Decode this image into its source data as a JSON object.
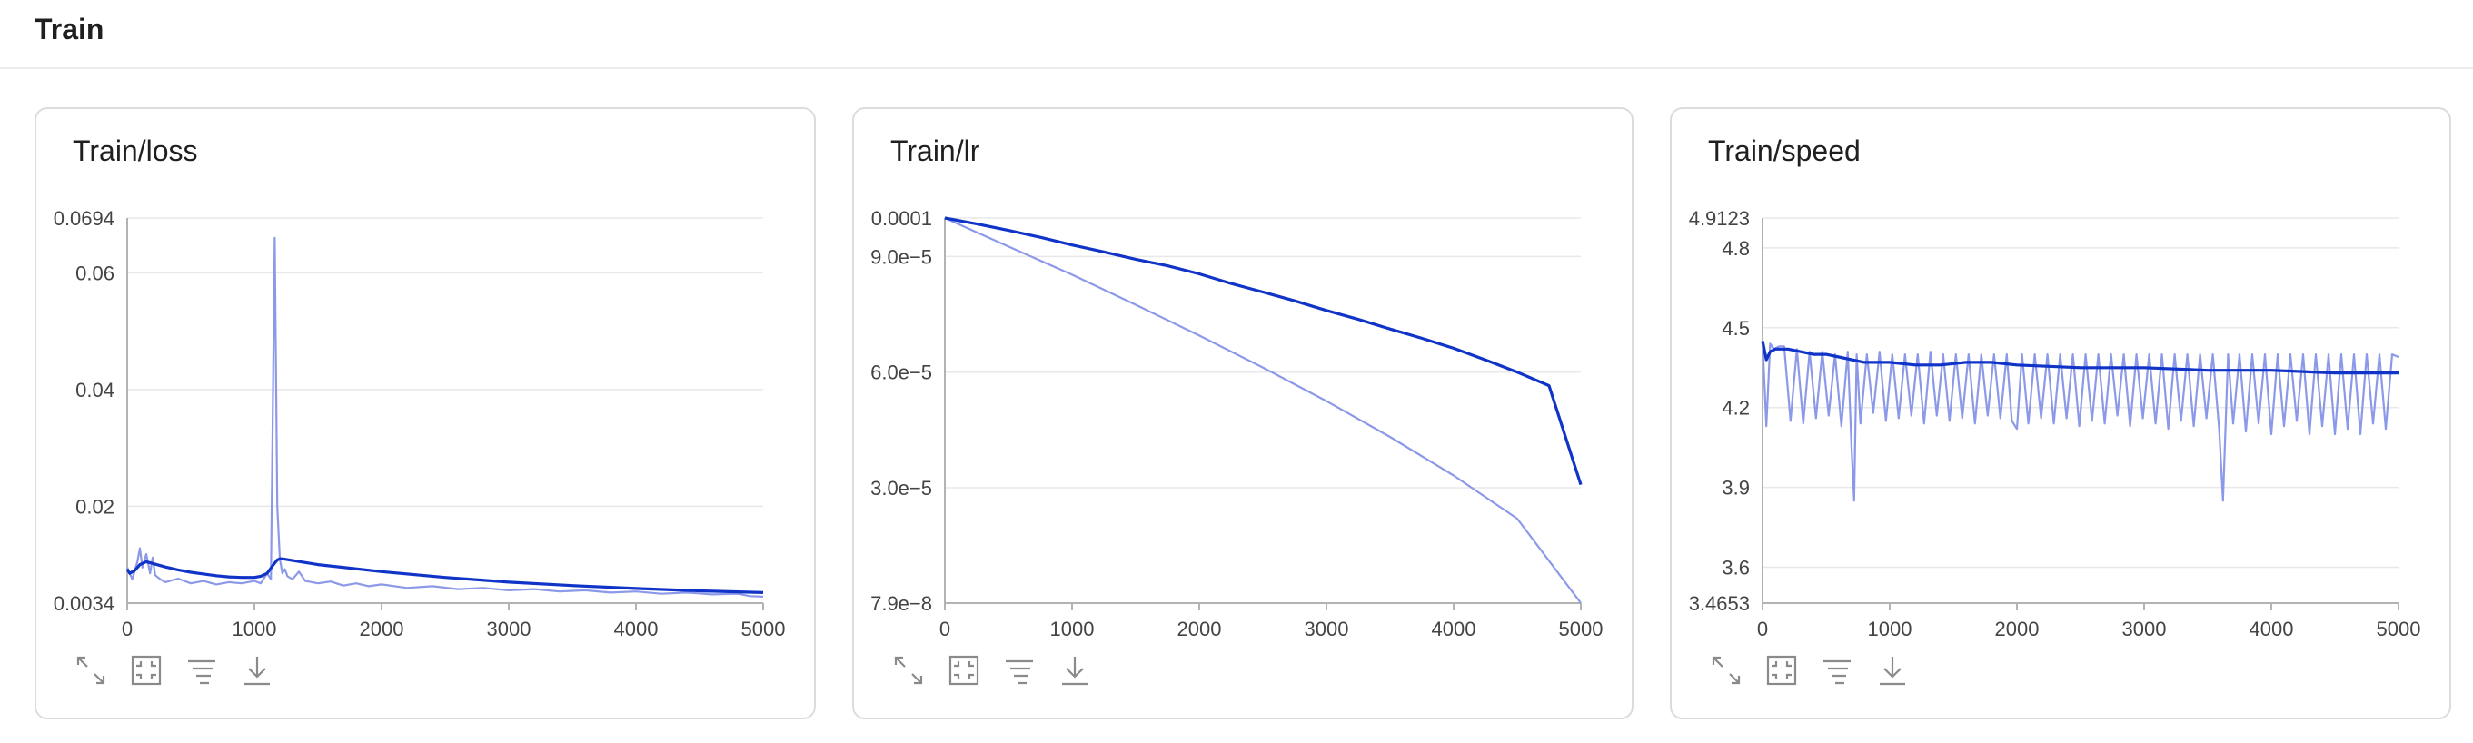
{
  "page": {
    "section_title": "Train"
  },
  "toolbar_icons": [
    "expand-icon",
    "fit-icon",
    "filter-icon",
    "download-icon"
  ],
  "colors": {
    "raw": "#8c99e8",
    "smoothed": "#1033c8",
    "grid": "#e8e8e8",
    "axis": "#b3b3b3",
    "tick": "#444444"
  },
  "chart_data": [
    {
      "type": "line",
      "title": "Train/loss",
      "xlim": [
        0,
        5000
      ],
      "ylim": [
        0.0034,
        0.0694
      ],
      "xticks": [
        0,
        1000,
        2000,
        3000,
        4000,
        5000
      ],
      "xtick_labels": [
        "0",
        "1000",
        "2000",
        "3000",
        "4000",
        "5000"
      ],
      "yticks": [
        0.0034,
        0.02,
        0.04,
        0.06,
        0.0694
      ],
      "ytick_labels": [
        "0.0034",
        "0.02",
        "0.04",
        "0.06",
        "0.0694"
      ],
      "series": [
        {
          "role": "raw",
          "x": [
            0,
            40,
            80,
            100,
            120,
            150,
            180,
            200,
            220,
            260,
            300,
            400,
            500,
            600,
            700,
            800,
            900,
            1000,
            1050,
            1100,
            1130,
            1160,
            1180,
            1200,
            1220,
            1240,
            1260,
            1300,
            1350,
            1400,
            1500,
            1600,
            1700,
            1800,
            1900,
            2000,
            2200,
            2400,
            2600,
            2800,
            3000,
            3200,
            3400,
            3600,
            3800,
            4000,
            4200,
            4400,
            4600,
            4800,
            4900,
            5000
          ],
          "y": [
            0.0095,
            0.0075,
            0.0105,
            0.0128,
            0.0095,
            0.0118,
            0.0085,
            0.0112,
            0.0082,
            0.0075,
            0.007,
            0.0076,
            0.0068,
            0.0072,
            0.0066,
            0.007,
            0.0068,
            0.0072,
            0.0068,
            0.0085,
            0.0075,
            0.066,
            0.02,
            0.011,
            0.0085,
            0.0092,
            0.008,
            0.0075,
            0.0088,
            0.0072,
            0.0068,
            0.0071,
            0.0064,
            0.0068,
            0.0063,
            0.0066,
            0.006,
            0.0063,
            0.0058,
            0.006,
            0.0056,
            0.0058,
            0.0054,
            0.0056,
            0.0052,
            0.0054,
            0.005,
            0.0052,
            0.0049,
            0.005,
            0.0046,
            0.0045
          ]
        },
        {
          "role": "smoothed",
          "x": [
            0,
            20,
            60,
            100,
            150,
            200,
            300,
            400,
            500,
            600,
            700,
            800,
            900,
            1000,
            1050,
            1100,
            1150,
            1180,
            1200,
            1220,
            1300,
            1500,
            2000,
            2500,
            3000,
            3500,
            4000,
            4500,
            5000
          ],
          "y": [
            0.0092,
            0.0085,
            0.009,
            0.01,
            0.0105,
            0.0102,
            0.0096,
            0.0091,
            0.0087,
            0.0084,
            0.0081,
            0.0079,
            0.0078,
            0.0078,
            0.008,
            0.0085,
            0.01,
            0.0108,
            0.011,
            0.011,
            0.0107,
            0.01,
            0.0088,
            0.0078,
            0.007,
            0.0064,
            0.0059,
            0.0055,
            0.0052
          ]
        }
      ]
    },
    {
      "type": "line",
      "title": "Train/lr",
      "xlim": [
        0,
        5000
      ],
      "ylim": [
        7.9e-08,
        0.0001
      ],
      "xticks": [
        0,
        1000,
        2000,
        3000,
        4000,
        5000
      ],
      "xtick_labels": [
        "0",
        "1000",
        "2000",
        "3000",
        "4000",
        "5000"
      ],
      "yticks": [
        7.9e-08,
        3e-05,
        6e-05,
        9e-05,
        0.0001
      ],
      "ytick_labels": [
        "7.9e−8",
        "3.0e−5",
        "6.0e−5",
        "9.0e−5",
        "0.0001"
      ],
      "series": [
        {
          "role": "raw",
          "x": [
            0,
            500,
            1000,
            1500,
            2000,
            2500,
            3000,
            3500,
            4000,
            4500,
            5000
          ],
          "y": [
            0.0001,
            9.26e-05,
            8.53e-05,
            7.75e-05,
            6.95e-05,
            6.12e-05,
            5.25e-05,
            4.32e-05,
            3.32e-05,
            2.2e-05,
            1e-07
          ]
        },
        {
          "role": "smoothed",
          "x": [
            0,
            250,
            500,
            750,
            1000,
            1250,
            1500,
            1750,
            2000,
            2250,
            2500,
            2750,
            3000,
            3250,
            3500,
            3750,
            4000,
            4250,
            4500,
            4750,
            5000
          ],
          "y": [
            0.0001,
            9.85e-05,
            9.68e-05,
            9.5e-05,
            9.3e-05,
            9.12e-05,
            8.93e-05,
            8.76e-05,
            8.55e-05,
            8.3e-05,
            8.08e-05,
            7.85e-05,
            7.6e-05,
            7.37e-05,
            7.12e-05,
            6.88e-05,
            6.62e-05,
            6.32e-05,
            6e-05,
            5.65e-05,
            3.08e-05
          ]
        }
      ]
    },
    {
      "type": "line",
      "title": "Train/speed",
      "xlim": [
        0,
        5000
      ],
      "ylim": [
        3.4653,
        4.9123
      ],
      "xticks": [
        0,
        1000,
        2000,
        3000,
        4000,
        5000
      ],
      "xtick_labels": [
        "0",
        "1000",
        "2000",
        "3000",
        "4000",
        "5000"
      ],
      "yticks": [
        3.4653,
        3.6,
        3.9,
        4.2,
        4.5,
        4.8,
        4.9123
      ],
      "ytick_labels": [
        "3.4653",
        "3.6",
        "3.9",
        "4.2",
        "4.5",
        "4.8",
        "4.9123"
      ],
      "series": [
        {
          "role": "raw",
          "x": [
            0,
            30,
            60,
            90,
            130,
            170,
            220,
            270,
            320,
            370,
            420,
            470,
            520,
            570,
            620,
            670,
            700,
            720,
            740,
            770,
            820,
            870,
            920,
            970,
            1020,
            1070,
            1120,
            1170,
            1220,
            1270,
            1320,
            1370,
            1420,
            1470,
            1520,
            1570,
            1620,
            1670,
            1720,
            1770,
            1820,
            1870,
            1920,
            1960,
            2000,
            2040,
            2090,
            2140,
            2190,
            2240,
            2290,
            2340,
            2390,
            2440,
            2490,
            2540,
            2590,
            2640,
            2690,
            2740,
            2790,
            2840,
            2890,
            2940,
            2990,
            3040,
            3090,
            3140,
            3190,
            3240,
            3290,
            3340,
            3390,
            3440,
            3490,
            3540,
            3590,
            3620,
            3660,
            3700,
            3750,
            3800,
            3850,
            3900,
            3950,
            4000,
            4050,
            4100,
            4150,
            4200,
            4250,
            4300,
            4350,
            4400,
            4450,
            4500,
            4550,
            4600,
            4650,
            4700,
            4750,
            4800,
            4850,
            4900,
            4950,
            5000
          ],
          "y": [
            4.45,
            4.13,
            4.44,
            4.42,
            4.43,
            4.43,
            4.15,
            4.42,
            4.14,
            4.41,
            4.16,
            4.41,
            4.17,
            4.4,
            4.13,
            4.41,
            4.05,
            3.85,
            4.4,
            4.14,
            4.4,
            4.18,
            4.41,
            4.15,
            4.4,
            4.16,
            4.4,
            4.17,
            4.4,
            4.14,
            4.41,
            4.17,
            4.4,
            4.15,
            4.4,
            4.16,
            4.4,
            4.14,
            4.4,
            4.17,
            4.4,
            4.16,
            4.4,
            4.15,
            4.12,
            4.4,
            4.14,
            4.4,
            4.16,
            4.4,
            4.14,
            4.4,
            4.16,
            4.4,
            4.13,
            4.4,
            4.15,
            4.4,
            4.14,
            4.4,
            4.17,
            4.4,
            4.13,
            4.4,
            4.16,
            4.4,
            4.14,
            4.4,
            4.12,
            4.4,
            4.15,
            4.4,
            4.13,
            4.4,
            4.16,
            4.4,
            4.12,
            3.85,
            4.4,
            4.14,
            4.4,
            4.11,
            4.4,
            4.14,
            4.4,
            4.1,
            4.4,
            4.13,
            4.4,
            4.15,
            4.4,
            4.1,
            4.4,
            4.13,
            4.4,
            4.1,
            4.4,
            4.12,
            4.4,
            4.1,
            4.4,
            4.14,
            4.4,
            4.12,
            4.4,
            4.39
          ]
        },
        {
          "role": "smoothed",
          "x": [
            0,
            30,
            60,
            100,
            200,
            300,
            400,
            500,
            600,
            700,
            800,
            1000,
            1200,
            1400,
            1600,
            1800,
            2000,
            2500,
            3000,
            3500,
            4000,
            4500,
            5000
          ],
          "y": [
            4.45,
            4.38,
            4.41,
            4.42,
            4.42,
            4.41,
            4.4,
            4.4,
            4.39,
            4.38,
            4.37,
            4.37,
            4.36,
            4.36,
            4.37,
            4.37,
            4.36,
            4.35,
            4.35,
            4.34,
            4.34,
            4.33,
            4.33
          ]
        }
      ]
    }
  ]
}
